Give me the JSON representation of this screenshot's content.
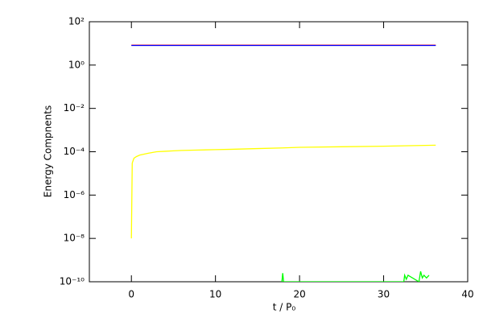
{
  "chart_data": {
    "type": "line",
    "x_label": "t / P₀",
    "y_label": "Energy Compnents",
    "xlim": [
      -5,
      40
    ],
    "xticks": [
      0,
      10,
      20,
      30,
      40
    ],
    "ylim": [
      1e-10,
      100
    ],
    "log_y": true,
    "yticks": [
      {
        "value": 100,
        "label": "10²"
      },
      {
        "value": 1,
        "label": "10⁰"
      },
      {
        "value": 0.01,
        "label": "10⁻²"
      },
      {
        "value": 0.0001,
        "label": "10⁻⁴"
      },
      {
        "value": 1e-06,
        "label": "10⁻⁶"
      },
      {
        "value": 1e-08,
        "label": "10⁻⁸"
      },
      {
        "value": 1e-10,
        "label": "10⁻¹⁰"
      }
    ],
    "series": [
      {
        "name": "red",
        "color": "#ff0000",
        "x": [
          0,
          36.2
        ],
        "values": [
          8.3,
          8.3
        ]
      },
      {
        "name": "blue",
        "color": "#0000ff",
        "x": [
          0,
          36.2
        ],
        "values": [
          8.0,
          8.0
        ]
      },
      {
        "name": "yellow",
        "color": "#ffff00",
        "x": [
          0,
          0.1,
          0.3,
          0.6,
          1,
          2,
          3,
          4,
          5,
          6,
          8,
          10,
          12,
          15,
          18,
          20,
          25,
          30,
          33,
          36.2
        ],
        "values": [
          1e-08,
          3e-05,
          5e-05,
          6e-05,
          7e-05,
          8.5e-05,
          0.0001,
          0.000105,
          0.00011,
          0.000115,
          0.00012,
          0.000125,
          0.00013,
          0.00014,
          0.00015,
          0.00016,
          0.00017,
          0.00018,
          0.00019,
          0.0002
        ]
      },
      {
        "name": "green",
        "color": "#00ff00",
        "x": [
          17.9,
          18,
          18.1,
          32.4,
          32.5,
          32.7,
          32.9,
          34.2,
          34.4,
          34.6,
          34.8,
          35.1,
          35.4
        ],
        "values": [
          1e-10,
          2.5e-10,
          1e-10,
          1e-10,
          2e-10,
          1.3e-10,
          2e-10,
          1e-10,
          3e-10,
          1.5e-10,
          2e-10,
          1.5e-10,
          2e-10
        ]
      }
    ]
  }
}
